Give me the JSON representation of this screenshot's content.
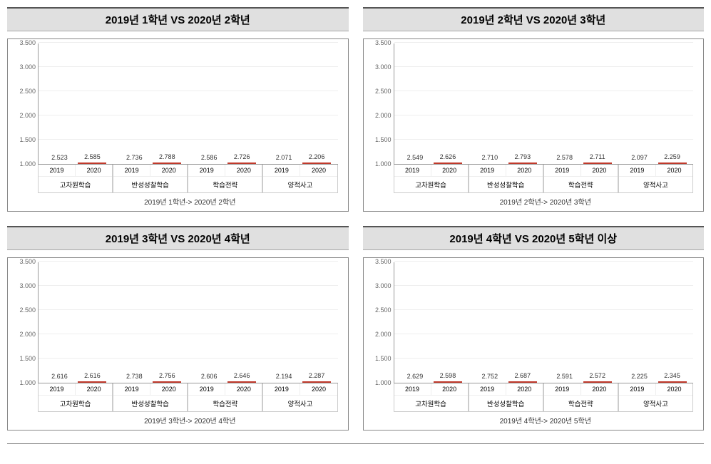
{
  "layout": {
    "rows": 2,
    "cols": 2
  },
  "y_axis": {
    "min": 1.0,
    "max": 3.5,
    "step": 0.5,
    "ticks": [
      1.0,
      1.5,
      2.0,
      2.5,
      3.0,
      3.5
    ]
  },
  "categories": [
    "고차원학습",
    "반성성찰학습",
    "학습전략",
    "양적사고"
  ],
  "year_labels": [
    "2019",
    "2020"
  ],
  "colors": {
    "bar_2019": "#4472c4",
    "bar_2020_stripe1": "#e74c3c",
    "bar_2020_stripe2": "#ffffff",
    "gridline": "#eeeeee",
    "axis": "#999999",
    "title_bg": "#e0e0e0",
    "title_border_top": "#555555"
  },
  "charts": [
    {
      "title": "2019년 1학년 VS 2020년 2학년",
      "subcaption": "2019년 1학년-> 2020년 2학년",
      "series_2019": [
        2.523,
        2.736,
        2.586,
        2.071
      ],
      "series_2020": [
        2.585,
        2.788,
        2.726,
        2.206
      ]
    },
    {
      "title": "2019년 2학년 VS 2020년 3학년",
      "subcaption": "2019년 2학년-> 2020년 3학년",
      "series_2019": [
        2.549,
        2.71,
        2.578,
        2.097
      ],
      "series_2020": [
        2.626,
        2.793,
        2.711,
        2.259
      ]
    },
    {
      "title": "2019년 3학년 VS 2020년 4학년",
      "subcaption": "2019년 3학년-> 2020년 4학년",
      "series_2019": [
        2.616,
        2.738,
        2.606,
        2.194
      ],
      "series_2020": [
        2.616,
        2.756,
        2.646,
        2.287
      ]
    },
    {
      "title": "2019년 4학년 VS 2020년 5학년 이상",
      "subcaption": "2019년 4학년-> 2020년 5학년",
      "series_2019": [
        2.629,
        2.752,
        2.591,
        2.225
      ],
      "series_2020": [
        2.598,
        2.687,
        2.572,
        2.345
      ]
    }
  ]
}
